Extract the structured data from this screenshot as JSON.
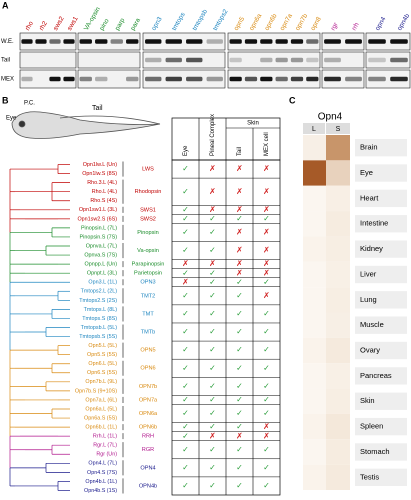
{
  "panel_a": {
    "label": "A",
    "rows": [
      "W.E.",
      "Tail",
      "MEX"
    ],
    "blocks": [
      [
        {
          "name": "rho",
          "color": "#c00000",
          "bands": [
            1,
            0,
            0.3
          ]
        },
        {
          "name": "rh2",
          "color": "#c00000",
          "bands": [
            1,
            0,
            0
          ]
        },
        {
          "name": "sws2",
          "color": "#c00000",
          "bands": [
            0.6,
            0,
            1
          ]
        },
        {
          "name": "sws1",
          "color": "#c00000",
          "bands": [
            1,
            0,
            1
          ]
        }
      ],
      [
        {
          "name": "VA-opsin",
          "color": "#1a8c2a",
          "bands": [
            1,
            0,
            0.5
          ]
        },
        {
          "name": "pino",
          "color": "#1a8c2a",
          "bands": [
            1,
            0,
            0.3
          ]
        },
        {
          "name": "parp",
          "color": "#1a8c2a",
          "bands": [
            0.5,
            0,
            0
          ]
        },
        {
          "name": "para",
          "color": "#1a8c2a",
          "bands": [
            1,
            0,
            0.4
          ]
        }
      ],
      [
        {
          "name": "opn3",
          "color": "#1f86c0",
          "bands": [
            1,
            0.3,
            0.6
          ]
        },
        {
          "name": "tmtops",
          "color": "#1f86c0",
          "bands": [
            1,
            0.6,
            0.8
          ]
        },
        {
          "name": "tmtopsb",
          "color": "#1f86c0",
          "bands": [
            1,
            0.7,
            0.7
          ]
        },
        {
          "name": "tmtops2",
          "color": "#1f86c0",
          "bands": [
            0.3,
            0,
            0.4
          ]
        }
      ],
      [
        {
          "name": "opn5",
          "color": "#d98a10",
          "bands": [
            1,
            0.2,
            1
          ]
        },
        {
          "name": "opn6a",
          "color": "#d98a10",
          "bands": [
            1,
            0,
            0.7
          ]
        },
        {
          "name": "opn6b",
          "color": "#d98a10",
          "bands": [
            1,
            0.3,
            1
          ]
        },
        {
          "name": "opn7a",
          "color": "#d98a10",
          "bands": [
            1,
            0.4,
            0.6
          ]
        },
        {
          "name": "opn7b",
          "color": "#d98a10",
          "bands": [
            1,
            0.4,
            0.8
          ]
        },
        {
          "name": "opn8",
          "color": "#d98a10",
          "bands": [
            0.6,
            0.2,
            0.9
          ]
        }
      ],
      [
        {
          "name": "rgr",
          "color": "#b0168c",
          "bands": [
            1,
            0.3,
            0.9
          ]
        },
        {
          "name": "rrh",
          "color": "#b0168c",
          "bands": [
            1,
            0,
            0.5
          ]
        }
      ],
      [
        {
          "name": "opn4",
          "color": "#1a1a8c",
          "bands": [
            1,
            0.2,
            0.5
          ]
        },
        {
          "name": "opn4b",
          "color": "#1a1a8c",
          "bands": [
            1,
            0.6,
            0.9
          ]
        }
      ]
    ]
  },
  "panel_b": {
    "label": "B",
    "tadpole_labels": [
      "Eye",
      "P.C.",
      "Tail"
    ],
    "columns": [
      "Eye",
      "Pineal Complex"
    ],
    "skin_header": "Skin",
    "skin_columns": [
      "Tail",
      "MEX cell"
    ],
    "groups": [
      {
        "name": "LWS",
        "color": "#c00000",
        "leaves": [
          "Opn1lw.L (Un)",
          "Opn1lw.S (8S)"
        ],
        "marks": [
          "✓",
          "✗",
          "✗",
          "✗"
        ]
      },
      {
        "name": "Rhodopsin",
        "color": "#c00000",
        "leaves": [
          "Rho.3.L (4L)",
          "Rho.L (4L)",
          "Rho.S (4S)"
        ],
        "marks": [
          "✓",
          "✗",
          "✗",
          "✗"
        ]
      },
      {
        "name": "SWS1",
        "color": "#c00000",
        "leaves": [
          "Opn1sw1.L (3L)"
        ],
        "marks": [
          "✓",
          "✗",
          "✗",
          "✗"
        ]
      },
      {
        "name": "SWS2",
        "color": "#c00000",
        "leaves": [
          "Opn1sw2.S (6S)"
        ],
        "marks": [
          "✓",
          "✓",
          "✓",
          "✓"
        ]
      },
      {
        "name": "Pinopsin",
        "color": "#1a8c2a",
        "leaves": [
          "Pinopsin.L (7L)",
          "Pinopsin.S (7S)"
        ],
        "marks": [
          "✓",
          "✓",
          "✗",
          "✗"
        ]
      },
      {
        "name": "Va-opsin",
        "color": "#1a8c2a",
        "leaves": [
          "Opnva.L (7L)",
          "Opnva.S (7S)"
        ],
        "marks": [
          "✓",
          "✓",
          "✗",
          "✗"
        ]
      },
      {
        "name": "Parapinopsin",
        "color": "#1a8c2a",
        "leaves": [
          "Opnpp.L (Un)"
        ],
        "marks": [
          "✗",
          "✗",
          "✗",
          "✗"
        ]
      },
      {
        "name": "Parietopsin",
        "color": "#1a8c2a",
        "leaves": [
          "Opnpt.L (3L)"
        ],
        "marks": [
          "✓",
          "✓",
          "✗",
          "✗"
        ]
      },
      {
        "name": "OPN3",
        "color": "#1f86c0",
        "leaves": [
          "Opn3.L (1L)"
        ],
        "marks": [
          "✗",
          "✓",
          "✓",
          "✓"
        ]
      },
      {
        "name": "TMT2",
        "color": "#1f86c0",
        "leaves": [
          "Tmtops2.L (2L)",
          "Tmtops2.S (2S)"
        ],
        "marks": [
          "✓",
          "✓",
          "✓",
          "✗"
        ]
      },
      {
        "name": "TMT",
        "color": "#1f86c0",
        "leaves": [
          "Tmtops.L (8L)",
          "Tmtops.S (8S)"
        ],
        "marks": [
          "✓",
          "✓",
          "✓",
          "✓"
        ]
      },
      {
        "name": "TMTb",
        "color": "#1f86c0",
        "leaves": [
          "Tmtopsb.L (5L)",
          "Tmtopsb.S (5S)"
        ],
        "marks": [
          "✓",
          "✓",
          "✓",
          "✓"
        ]
      },
      {
        "name": "OPN5",
        "color": "#d98a10",
        "leaves": [
          "Opn5.L (5L)",
          "Opn5.S (5S)"
        ],
        "marks": [
          "✓",
          "✓",
          "✓",
          "✓"
        ]
      },
      {
        "name": "OPN6",
        "color": "#d98a10",
        "leaves": [
          "Opn6.L (5L)",
          "Opn6.S (5S)"
        ],
        "marks": [
          "✓",
          "✓",
          "✓",
          "✓"
        ]
      },
      {
        "name": "OPN7b",
        "color": "#d98a10",
        "leaves": [
          "Opn7b.L (9L)",
          "Opn7b.S (9+10S)"
        ],
        "marks": [
          "✓",
          "✓",
          "✓",
          "✓"
        ]
      },
      {
        "name": "OPN7a",
        "color": "#d98a10",
        "leaves": [
          "Opn7a.L (6L)"
        ],
        "marks": [
          "✓",
          "✓",
          "✓",
          "✓"
        ]
      },
      {
        "name": "OPN6a",
        "color": "#d98a10",
        "leaves": [
          "Opn6a.L (5L)",
          "Opn6a.S (5S)"
        ],
        "marks": [
          "✓",
          "✓",
          "✓",
          "✓"
        ]
      },
      {
        "name": "OPN6b",
        "color": "#d98a10",
        "leaves": [
          "Opn6b.L (1L)"
        ],
        "marks": [
          "✓",
          "✓",
          "✓",
          "✗"
        ]
      },
      {
        "name": "RRH",
        "color": "#b0168c",
        "leaves": [
          "Rrh.L (1L)"
        ],
        "marks": [
          "✓",
          "✗",
          "✗",
          "✗"
        ]
      },
      {
        "name": "RGR",
        "color": "#b0168c",
        "leaves": [
          "Rgr.L (7L)",
          "Rgr (Un)"
        ],
        "marks": [
          "✓",
          "✓",
          "✓",
          "✓"
        ]
      },
      {
        "name": "OPN4",
        "color": "#1a1a8c",
        "leaves": [
          "Opn4.L (7L)",
          "Opn4.S (7S)"
        ],
        "marks": [
          "✓",
          "✓",
          "✓",
          "✓"
        ]
      },
      {
        "name": "OPN4b",
        "color": "#1a1a8c",
        "leaves": [
          "Opn4b.L (1L)",
          "Opn4b.S (1S)"
        ],
        "marks": [
          "✓",
          "✓",
          "✓",
          "✓"
        ]
      }
    ]
  },
  "panel_c": {
    "label": "C",
    "title": "Opn4",
    "columns": [
      "L",
      "S"
    ],
    "tissues": [
      {
        "name": "Brain",
        "colors": [
          "#f7efe6",
          "#c8956a"
        ]
      },
      {
        "name": "Eye",
        "colors": [
          "#a65a28",
          "#e8d2bd"
        ]
      },
      {
        "name": "Heart",
        "colors": [
          "#fbf6f0",
          "#f8efe5"
        ]
      },
      {
        "name": "Intestine",
        "colors": [
          "#fbf6f0",
          "#f6ece0"
        ]
      },
      {
        "name": "Kidney",
        "colors": [
          "#faf3eb",
          "#f7eee3"
        ]
      },
      {
        "name": "Liver",
        "colors": [
          "#fbf6f0",
          "#f8f0e6"
        ]
      },
      {
        "name": "Lung",
        "colors": [
          "#fbf6f0",
          "#f7eee3"
        ]
      },
      {
        "name": "Muscle",
        "colors": [
          "#fbf6f0",
          "#f7efe5"
        ]
      },
      {
        "name": "Ovary",
        "colors": [
          "#faf3eb",
          "#f5eadd"
        ]
      },
      {
        "name": "Pancreas",
        "colors": [
          "#fbf6f0",
          "#f8f0e6"
        ]
      },
      {
        "name": "Skin",
        "colors": [
          "#fbf6f0",
          "#f7eee3"
        ]
      },
      {
        "name": "Spleen",
        "colors": [
          "#faf3eb",
          "#f4e8da"
        ]
      },
      {
        "name": "Stomach",
        "colors": [
          "#fbf6f0",
          "#f6ece0"
        ]
      },
      {
        "name": "Testis",
        "colors": [
          "#faf3eb",
          "#f5eadd"
        ]
      }
    ]
  }
}
